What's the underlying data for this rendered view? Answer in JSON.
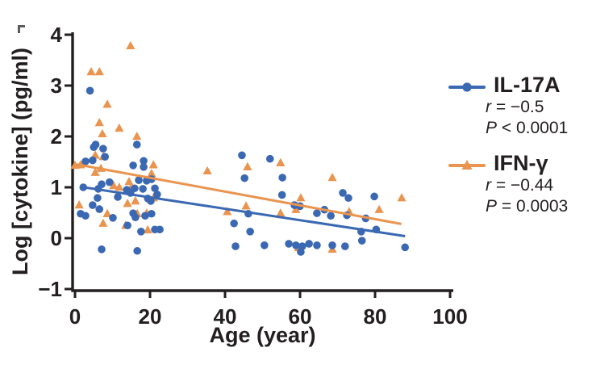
{
  "figure": {
    "background": "#ffffff",
    "text_color": "#231f20"
  },
  "chart_data": {
    "type": "scatter",
    "title": "",
    "xlabel": "Age (year)",
    "ylabel": "Log [cytokine] (pg/ml)",
    "xlim": [
      0,
      100
    ],
    "ylim": [
      -1,
      4
    ],
    "x_ticks": [
      0,
      20,
      40,
      60,
      80,
      100
    ],
    "y_ticks": [
      -1,
      0,
      1,
      2,
      3,
      4
    ],
    "grid": false,
    "legend_position": "right",
    "series": [
      {
        "name": "IL-17A",
        "marker": "circle",
        "color": "#3a68b2",
        "r_label": "r",
        "r_value": " = −0.5",
        "p_label": "P",
        "p_value": " < 0.0001",
        "trend": {
          "x1": 1.5,
          "y1": 1.01,
          "x2": 88,
          "y2": 0.04
        },
        "points": [
          [
            4,
            2.9
          ],
          [
            5.5,
            1.84
          ],
          [
            16.5,
            1.84
          ],
          [
            5,
            1.79
          ],
          [
            7.5,
            1.76
          ],
          [
            8,
            1.6
          ],
          [
            2.8,
            1.51
          ],
          [
            4.7,
            1.53
          ],
          [
            15.5,
            1.43
          ],
          [
            18.3,
            1.52
          ],
          [
            18.3,
            1.4
          ],
          [
            20.4,
            1.16
          ],
          [
            17,
            1.14
          ],
          [
            19.1,
            1.13
          ],
          [
            9.2,
            1.1
          ],
          [
            7.1,
            1.06
          ],
          [
            2.2,
            1.0
          ],
          [
            6.2,
            0.97
          ],
          [
            15.9,
            0.98
          ],
          [
            21.3,
            0.98
          ],
          [
            18.1,
            0.97
          ],
          [
            13.8,
            0.95
          ],
          [
            14.8,
            0.89
          ],
          [
            21.9,
            0.86
          ],
          [
            19.4,
            0.78
          ],
          [
            20.2,
            0.73
          ],
          [
            6,
            0.79
          ],
          [
            11.4,
            0.81
          ],
          [
            4.7,
            0.65
          ],
          [
            6.5,
            0.57
          ],
          [
            1.5,
            0.48
          ],
          [
            2.8,
            0.44
          ],
          [
            10.1,
            0.4
          ],
          [
            15.5,
            0.49
          ],
          [
            16.1,
            0.41
          ],
          [
            18.7,
            0.44
          ],
          [
            20.4,
            0.48
          ],
          [
            14,
            0.25
          ],
          [
            17.6,
            0.13
          ],
          [
            21.3,
            0.17
          ],
          [
            22.6,
            0.17
          ],
          [
            7.1,
            -0.22
          ],
          [
            16.6,
            -0.25
          ],
          [
            44.5,
            1.63
          ],
          [
            52,
            1.56
          ],
          [
            45.2,
            1.18
          ],
          [
            55.3,
            1.19
          ],
          [
            46.2,
            0.48
          ],
          [
            42.4,
            0.29
          ],
          [
            46.7,
            0.13
          ],
          [
            42.8,
            -0.16
          ],
          [
            50.5,
            -0.14
          ],
          [
            55.2,
            0.85
          ],
          [
            58.5,
            0.65
          ],
          [
            60,
            0.63
          ],
          [
            60.2,
            -0.27
          ],
          [
            57,
            -0.11
          ],
          [
            58.9,
            -0.14
          ],
          [
            60.6,
            -0.16
          ],
          [
            62.4,
            -0.11
          ],
          [
            64.5,
            -0.14
          ],
          [
            68.6,
            -0.14
          ],
          [
            72,
            -0.16
          ],
          [
            64.5,
            0.49
          ],
          [
            66.5,
            0.56
          ],
          [
            68.2,
            0.44
          ],
          [
            71.4,
            0.89
          ],
          [
            72.9,
            0.79
          ],
          [
            72.5,
            0.45
          ],
          [
            76.3,
            0.13
          ],
          [
            79.8,
            0.82
          ],
          [
            77.5,
            0.39
          ],
          [
            80.3,
            0.17
          ],
          [
            76.5,
            -0.05
          ],
          [
            88,
            -0.18
          ]
        ]
      },
      {
        "name": "IFN-γ",
        "marker": "triangle",
        "color": "#e9944f",
        "r_label": "r",
        "r_value": " = −0.44",
        "p_label": "P",
        "p_value": " = 0.0003",
        "trend": {
          "x1": 0.5,
          "y1": 1.45,
          "x2": 87,
          "y2": 0.28
        },
        "points": [
          [
            14.8,
            3.78
          ],
          [
            4.3,
            3.27
          ],
          [
            6.5,
            3.27
          ],
          [
            8.6,
            2.63
          ],
          [
            6.5,
            2.27
          ],
          [
            7.3,
            2.05
          ],
          [
            11.8,
            2.16
          ],
          [
            16.5,
            2.0
          ],
          [
            0,
            1.43
          ],
          [
            1.5,
            1.44
          ],
          [
            5.4,
            1.63
          ],
          [
            7.5,
            1.6
          ],
          [
            5.4,
            1.29
          ],
          [
            6.9,
            1.37
          ],
          [
            20.9,
            1.44
          ],
          [
            20.4,
            1.27
          ],
          [
            14.4,
            1.11
          ],
          [
            10.3,
            1.03
          ],
          [
            11.8,
            1.0
          ],
          [
            14.8,
            0.97
          ],
          [
            20.9,
            0.79
          ],
          [
            1.1,
            0.65
          ],
          [
            8.6,
            0.48
          ],
          [
            7.5,
            0.29
          ],
          [
            14,
            0.68
          ],
          [
            16.1,
            0.73
          ],
          [
            13.5,
            0.25
          ],
          [
            19.4,
            0.16
          ],
          [
            19.1,
            0.49
          ],
          [
            16.6,
            0.48
          ],
          [
            35.3,
            1.32
          ],
          [
            46,
            1.4
          ],
          [
            40.6,
            0.52
          ],
          [
            45.6,
            0.63
          ],
          [
            54.8,
            1.48
          ],
          [
            60.2,
            0.79
          ],
          [
            54.8,
            0.49
          ],
          [
            58.9,
            0.56
          ],
          [
            59.6,
            -0.19
          ],
          [
            68.6,
            1.19
          ],
          [
            73.1,
            0.52
          ],
          [
            81.1,
            0.56
          ],
          [
            87.1,
            0.79
          ],
          [
            68.6,
            -0.22
          ]
        ]
      }
    ]
  }
}
